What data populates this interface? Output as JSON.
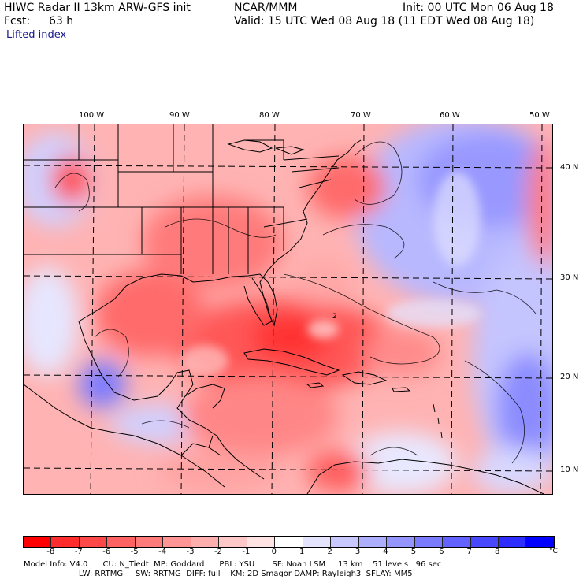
{
  "header": {
    "left_line1": "HIWC Radar II 13km ARW-GFS init",
    "left_line2_label": "Fcst:",
    "left_line2_value": "63 h",
    "subtitle": "Lifted index",
    "center_line1": "NCAR/MMM",
    "right_line1": "Init: 00 UTC Mon 06 Aug 18",
    "right_line2": "Valid: 15 UTC Wed 08 Aug 18 (11 EDT Wed 08 Aug 18)"
  },
  "map": {
    "lon_labels": [
      "100 W",
      "90 W",
      "80 W",
      "70 W",
      "60 W",
      "50 W"
    ],
    "lat_labels": [
      "40 N",
      "30 N",
      "20 N",
      "10 N"
    ],
    "contour_label": "2"
  },
  "colorbar": {
    "colors": [
      "#ff0000",
      "#ff2d2d",
      "#ff4848",
      "#ff6262",
      "#ff7b7b",
      "#ff9595",
      "#ffaeae",
      "#ffc8c8",
      "#ffe2e2",
      "#ffffff",
      "#e4e4ff",
      "#c8c8ff",
      "#aeaeff",
      "#9595ff",
      "#7b7bff",
      "#6262ff",
      "#4848ff",
      "#2d2dff",
      "#0000ff"
    ],
    "ticks": [
      "-8",
      "-7",
      "-6",
      "-5",
      "-4",
      "-3",
      "-2",
      "-1",
      "0",
      "1",
      "2",
      "3",
      "4",
      "5",
      "6",
      "7",
      "8"
    ],
    "unit": "°C"
  },
  "model_info": {
    "line1": "Model Info: V4.0      CU: N_Tiedt  MP: Goddard      PBL: YSU       SF: Noah LSM     13 km    51 levels   96 sec",
    "line2": "                      LW: RRTMG     SW: RRTMG  DIFF: full    KM: 2D Smagor DAMP: Rayleigh3  SFLAY: MM5"
  }
}
